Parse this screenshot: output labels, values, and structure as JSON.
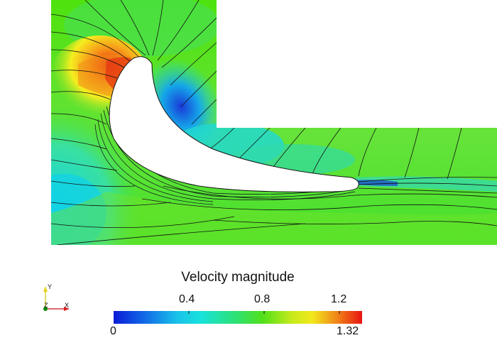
{
  "legend": {
    "title": "Velocity magnitude",
    "min_label": "0",
    "max_label": "1.32",
    "ticks": [
      "0.4",
      "0.8",
      "1.2"
    ]
  },
  "axes": {
    "y_label": "Y",
    "z_label": "Z",
    "x_label": "X"
  },
  "colors": {
    "low": "#0a1cd6",
    "mid_low": "#19d8e6",
    "mid": "#3fe01a",
    "mid_high": "#f2ee1c",
    "high": "#e81411",
    "background": "#ffffff"
  }
}
